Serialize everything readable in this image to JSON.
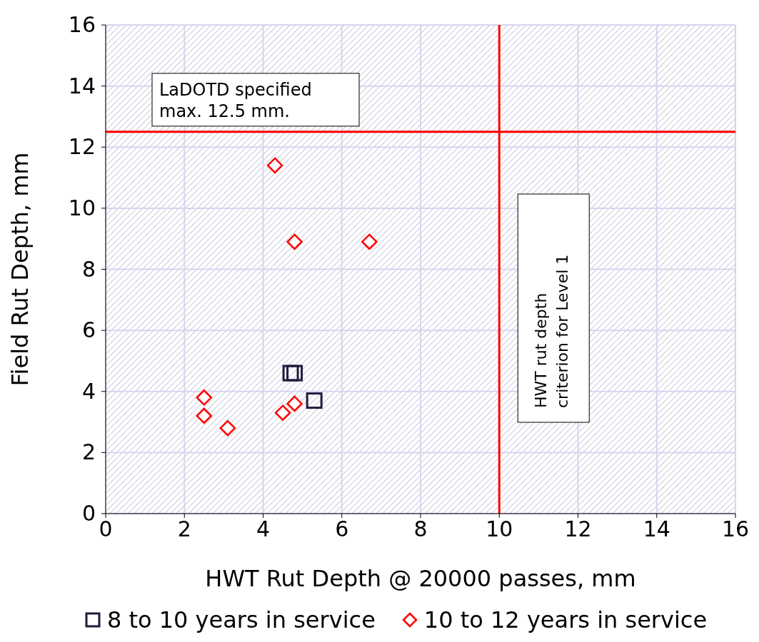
{
  "chart_data": {
    "type": "scatter",
    "xlabel": "HWT Rut Depth @ 20000 passes, mm",
    "ylabel": "Field Rut Depth, mm",
    "xlim": [
      0,
      16
    ],
    "xticks": [
      0,
      2,
      4,
      6,
      8,
      10,
      12,
      14,
      16
    ],
    "ylim": [
      0,
      16
    ],
    "yticks": [
      0,
      2,
      4,
      6,
      8,
      10,
      12,
      14,
      16
    ],
    "grid": true,
    "legend": "bottom",
    "series": [
      {
        "name": "8 to 10 years in service",
        "color": "#1f1a3d",
        "marker": "square",
        "x": [
          4.7,
          4.8,
          5.3
        ],
        "values": [
          4.6,
          4.6,
          3.7
        ]
      },
      {
        "name": "10 to 12 years in service",
        "color": "#ff0000",
        "marker": "diamond",
        "x": [
          4.3,
          4.8,
          6.7,
          2.5,
          2.5,
          3.1,
          4.5,
          4.8
        ],
        "values": [
          11.4,
          8.9,
          8.9,
          3.8,
          3.2,
          2.8,
          3.3,
          3.6
        ]
      }
    ],
    "ref_lines": [
      {
        "axis": "y",
        "value": 12.5,
        "label": "LaDOTD specified max. 12.5 mm.",
        "color": "#ff0000"
      },
      {
        "axis": "x",
        "value": 10,
        "label": "HWT rut depth criterion for Level 1",
        "color": "#ff0000"
      }
    ]
  }
}
